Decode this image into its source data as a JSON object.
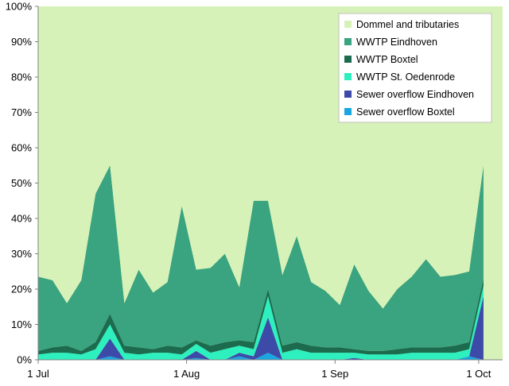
{
  "chart_data": {
    "type": "area",
    "stacked": true,
    "percent_stacked": true,
    "x_ticks": [
      "1 Jul",
      "1 Aug",
      "1 Sep",
      "1 Oct"
    ],
    "y_ticks": [
      "0%",
      "10%",
      "20%",
      "30%",
      "40%",
      "50%",
      "60%",
      "70%",
      "80%",
      "90%",
      "100%"
    ],
    "ylim": [
      0,
      100
    ],
    "legend_position": "top-right",
    "grid": false,
    "x_dates": [
      "2023-07-01",
      "2023-07-04",
      "2023-07-07",
      "2023-07-10",
      "2023-07-13",
      "2023-07-16",
      "2023-07-19",
      "2023-07-22",
      "2023-07-25",
      "2023-07-28",
      "2023-07-31",
      "2023-08-03",
      "2023-08-06",
      "2023-08-09",
      "2023-08-12",
      "2023-08-15",
      "2023-08-18",
      "2023-08-21",
      "2023-08-24",
      "2023-08-27",
      "2023-08-30",
      "2023-09-02",
      "2023-09-05",
      "2023-09-08",
      "2023-09-11",
      "2023-09-14",
      "2023-09-17",
      "2023-09-20",
      "2023-09-23",
      "2023-09-26",
      "2023-09-29",
      "2023-10-02"
    ],
    "series": [
      {
        "name": "Sewer overflow Boxtel",
        "color": "#1aa6e0",
        "values": [
          0,
          0,
          0,
          0,
          0,
          1,
          0,
          0,
          0,
          0,
          0,
          0.5,
          0,
          0,
          1,
          0,
          2,
          0,
          0,
          0,
          0,
          0,
          0,
          0,
          0,
          0,
          0,
          0,
          0,
          0,
          1,
          0
        ]
      },
      {
        "name": "Sewer overflow Eindhoven",
        "color": "#3d4aa8",
        "values": [
          0,
          0,
          0,
          0,
          0,
          5,
          0,
          0,
          0,
          0,
          0,
          2,
          0,
          0,
          1,
          1,
          10,
          0,
          0,
          0,
          0,
          0,
          0.5,
          0,
          0,
          0,
          0,
          0,
          0,
          0,
          0,
          18
        ]
      },
      {
        "name": "WWTP St. Oedenrode",
        "color": "#2df0be",
        "values": [
          1.5,
          2,
          2,
          1.5,
          3,
          4,
          2,
          1.5,
          2,
          2,
          1.5,
          2,
          2,
          3,
          2,
          2,
          6,
          2,
          3,
          2,
          2,
          2,
          1.5,
          1.5,
          1.5,
          1.5,
          2,
          2,
          2,
          2,
          2,
          3
        ]
      },
      {
        "name": "WWTP Boxtel",
        "color": "#1c6b4f",
        "values": [
          1,
          1.5,
          2,
          1,
          2,
          3,
          2,
          2,
          1,
          2,
          2,
          1,
          2,
          2,
          1.5,
          2,
          2,
          2,
          2,
          2,
          1.5,
          1.5,
          1,
          1,
          1,
          1.5,
          1.5,
          1.5,
          1.5,
          2,
          2,
          2
        ]
      },
      {
        "name": "WWTP Eindhoven",
        "color": "#3aa37f",
        "values": [
          21,
          19,
          12,
          20,
          42,
          42,
          12,
          22,
          16,
          18,
          40,
          20,
          22,
          25,
          15,
          40,
          25,
          20,
          30,
          18,
          16,
          12,
          24,
          17,
          12,
          17,
          20,
          25,
          20,
          20,
          20,
          32
        ]
      },
      {
        "name": "Dommel and tributaries",
        "color": "#d7f2b8",
        "values": [
          76.5,
          77.5,
          84,
          77.5,
          53,
          45,
          84,
          74.5,
          81,
          78,
          56.5,
          74.5,
          74,
          70,
          79.5,
          55,
          55,
          76,
          65,
          78,
          80.5,
          84.5,
          73,
          80.5,
          85.5,
          80,
          76.5,
          71.5,
          76.5,
          76,
          75,
          45
        ]
      }
    ]
  },
  "legend": {
    "items": [
      {
        "label": "Dommel and tributaries",
        "color": "#d7f2b8"
      },
      {
        "label": "WWTP Eindhoven",
        "color": "#3aa37f"
      },
      {
        "label": "WWTP Boxtel",
        "color": "#1c6b4f"
      },
      {
        "label": "WWTP St. Oedenrode",
        "color": "#2df0be"
      },
      {
        "label": "Sewer overflow Eindhoven",
        "color": "#3d4aa8"
      },
      {
        "label": "Sewer overflow Boxtel",
        "color": "#1aa6e0"
      }
    ]
  }
}
